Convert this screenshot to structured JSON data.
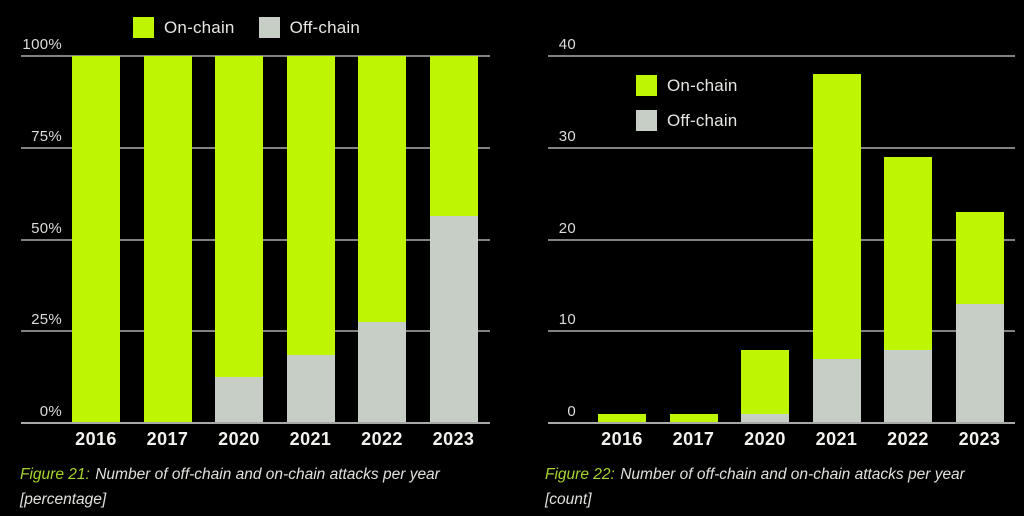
{
  "colors": {
    "background": "#000000",
    "on_chain": "#bdf502",
    "off_chain": "#c7cec5",
    "gridline": "#828282",
    "baseline": "#a8a8a8",
    "tick_text": "#dcdcda",
    "year_text": "#f4f2ee",
    "caption_accent": "#a7d32e",
    "caption_text": "#e2e0db",
    "legend_text": "#e8e6e2"
  },
  "legend": {
    "on_chain": "On-chain",
    "off_chain": "Off-chain"
  },
  "charts": [
    {
      "caption_label": "Figure 21:",
      "caption_body": "Number of off-chain and on-chain attacks per year [percentage]"
    },
    {
      "caption_label": "Figure 22:",
      "caption_body": "Number of off-chain and on-chain attacks per year [count]"
    }
  ],
  "chart_data": [
    {
      "type": "bar",
      "stacked": true,
      "title": "Figure 21: Number of off-chain and on-chain attacks per year [percentage]",
      "categories": [
        "2016",
        "2017",
        "2020",
        "2021",
        "2022",
        "2023"
      ],
      "series": [
        {
          "name": "Off-chain",
          "color_key": "off_chain",
          "values": [
            0,
            0,
            12.5,
            18.4,
            27.6,
            56.5
          ]
        },
        {
          "name": "On-chain",
          "color_key": "on_chain",
          "values": [
            100,
            100,
            87.5,
            81.6,
            72.4,
            43.5
          ]
        }
      ],
      "unit": "%",
      "ylim": [
        0,
        100
      ],
      "y_ticks": [
        {
          "value": 0,
          "label": "0%"
        },
        {
          "value": 25,
          "label": "25%"
        },
        {
          "value": 50,
          "label": "50%"
        },
        {
          "value": 75,
          "label": "75%"
        },
        {
          "value": 100,
          "label": "100%"
        }
      ],
      "grid": true,
      "legend_position": "top-horizontal"
    },
    {
      "type": "bar",
      "stacked": true,
      "title": "Figure 22: Number of off-chain and on-chain attacks per year [count]",
      "categories": [
        "2016",
        "2017",
        "2020",
        "2021",
        "2022",
        "2023"
      ],
      "series": [
        {
          "name": "Off-chain",
          "color_key": "off_chain",
          "values": [
            0,
            0,
            1,
            7,
            8,
            13
          ]
        },
        {
          "name": "On-chain",
          "color_key": "on_chain",
          "values": [
            1,
            1,
            7,
            31,
            21,
            10
          ]
        }
      ],
      "unit": "count",
      "ylim": [
        0,
        40
      ],
      "y_ticks": [
        {
          "value": 0,
          "label": "0"
        },
        {
          "value": 10,
          "label": "10"
        },
        {
          "value": 20,
          "label": "20"
        },
        {
          "value": 30,
          "label": "30"
        },
        {
          "value": 40,
          "label": "40"
        }
      ],
      "grid": true,
      "legend_position": "inside-vertical"
    }
  ]
}
